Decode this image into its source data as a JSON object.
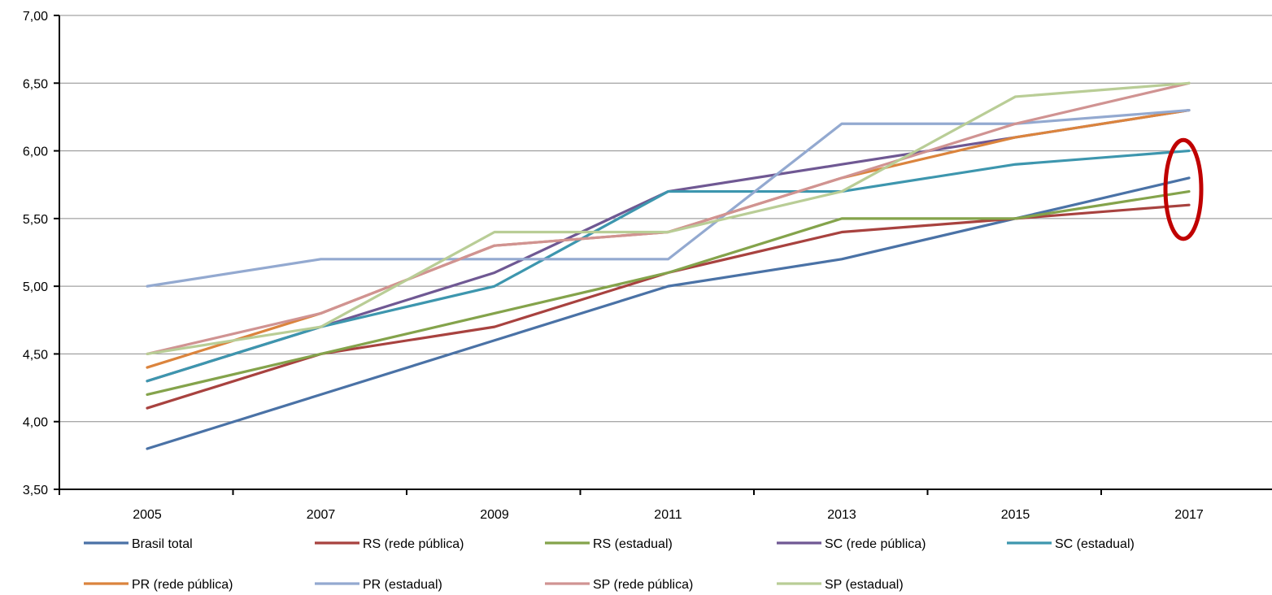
{
  "chart_data": {
    "type": "line",
    "title": "",
    "xlabel": "",
    "ylabel": "",
    "categories": [
      "2005",
      "2007",
      "2009",
      "2011",
      "2013",
      "2015",
      "2017"
    ],
    "ylim": [
      3.5,
      7.0
    ],
    "yticks": [
      "3,50",
      "4,00",
      "4,50",
      "5,00",
      "5,50",
      "6,00",
      "6,50",
      "7,00"
    ],
    "grid": true,
    "legend_position": "bottom",
    "series": [
      {
        "name": "Brasil total",
        "color": "#4A72A6",
        "values": [
          3.8,
          4.2,
          4.6,
          5.0,
          5.2,
          5.5,
          5.8
        ]
      },
      {
        "name": "RS (rede pública)",
        "color": "#A8423F",
        "values": [
          4.1,
          4.5,
          4.7,
          5.1,
          5.4,
          5.5,
          5.6
        ]
      },
      {
        "name": "RS (estadual)",
        "color": "#84A34B",
        "values": [
          4.2,
          4.5,
          4.8,
          5.1,
          5.5,
          5.5,
          5.7
        ]
      },
      {
        "name": "SC (rede pública)",
        "color": "#6F5893",
        "values": [
          4.3,
          4.7,
          5.1,
          5.7,
          5.9,
          6.1,
          6.3
        ]
      },
      {
        "name": "SC (estadual)",
        "color": "#3D96AE",
        "values": [
          4.3,
          4.7,
          5.0,
          5.7,
          5.7,
          5.9,
          6.0
        ]
      },
      {
        "name": "PR (rede pública)",
        "color": "#DB843D",
        "values": [
          4.4,
          4.8,
          5.3,
          5.4,
          5.8,
          6.1,
          6.3
        ]
      },
      {
        "name": "PR (estadual)",
        "color": "#93A9D0",
        "values": [
          5.0,
          5.2,
          5.2,
          5.2,
          6.2,
          6.2,
          6.3
        ]
      },
      {
        "name": "SP (rede pública)",
        "color": "#D09392",
        "values": [
          4.5,
          4.8,
          5.3,
          5.4,
          5.8,
          6.2,
          6.5
        ]
      },
      {
        "name": "SP (estadual)",
        "color": "#B9CD96",
        "values": [
          4.5,
          4.7,
          5.4,
          5.4,
          5.7,
          6.4,
          6.5
        ]
      }
    ],
    "annotation": {
      "shape": "ellipse",
      "color": "#C00000",
      "category": "2017",
      "y_range": [
        5.35,
        6.08
      ]
    }
  }
}
